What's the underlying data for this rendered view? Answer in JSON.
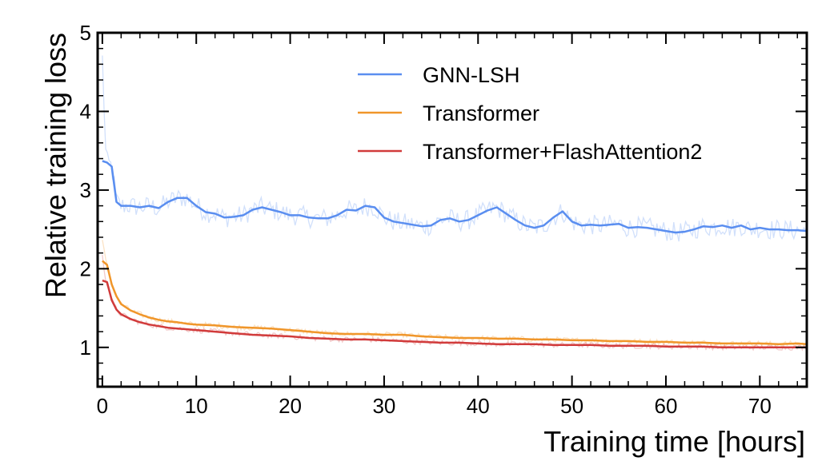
{
  "chart_data": {
    "type": "line",
    "xlabel": "Training time [hours]",
    "ylabel": "Relative training loss",
    "xlim": [
      -0.5,
      75
    ],
    "ylim": [
      0.5,
      5
    ],
    "xticks": [
      0,
      10,
      20,
      30,
      40,
      50,
      60,
      70
    ],
    "yticks": [
      1,
      2,
      3,
      4,
      5
    ],
    "legend_position": "top-right",
    "series": [
      {
        "name": "GNN-LSH",
        "color": "#5a8ef0",
        "x": [
          0,
          0.5,
          1,
          1.5,
          2,
          3,
          4,
          5,
          6,
          7,
          8,
          9,
          10,
          11,
          12,
          13,
          14,
          15,
          16,
          17,
          18,
          19,
          20,
          21,
          22,
          23,
          24,
          25,
          26,
          27,
          28,
          29,
          30,
          31,
          32,
          33,
          34,
          35,
          36,
          37,
          38,
          39,
          40,
          41,
          42,
          43,
          44,
          45,
          46,
          47,
          48,
          49,
          50,
          51,
          52,
          53,
          54,
          55,
          56,
          57,
          58,
          59,
          60,
          61,
          62,
          63,
          64,
          65,
          66,
          67,
          68,
          69,
          70,
          71,
          72,
          73,
          74,
          75
        ],
        "values": [
          3.37,
          3.35,
          3.3,
          2.85,
          2.8,
          2.8,
          2.78,
          2.8,
          2.77,
          2.85,
          2.9,
          2.9,
          2.8,
          2.72,
          2.7,
          2.65,
          2.66,
          2.68,
          2.75,
          2.78,
          2.75,
          2.72,
          2.68,
          2.68,
          2.65,
          2.64,
          2.64,
          2.68,
          2.75,
          2.74,
          2.8,
          2.78,
          2.65,
          2.6,
          2.58,
          2.56,
          2.54,
          2.55,
          2.62,
          2.64,
          2.6,
          2.62,
          2.68,
          2.74,
          2.78,
          2.7,
          2.62,
          2.55,
          2.52,
          2.55,
          2.65,
          2.73,
          2.6,
          2.55,
          2.56,
          2.55,
          2.56,
          2.57,
          2.52,
          2.53,
          2.52,
          2.5,
          2.48,
          2.46,
          2.47,
          2.5,
          2.54,
          2.53,
          2.55,
          2.52,
          2.55,
          2.5,
          2.52,
          2.5,
          2.5,
          2.49,
          2.49,
          2.48
        ]
      },
      {
        "name": "Transformer",
        "color": "#f0962a",
        "x": [
          0,
          0.5,
          1,
          1.5,
          2,
          3,
          4,
          5,
          6,
          7,
          8,
          9,
          10,
          12,
          14,
          16,
          18,
          20,
          22,
          24,
          26,
          28,
          30,
          32,
          34,
          36,
          38,
          40,
          42,
          44,
          46,
          48,
          50,
          52,
          54,
          56,
          58,
          60,
          62,
          64,
          66,
          68,
          70,
          72,
          74,
          75
        ],
        "values": [
          2.1,
          2.05,
          1.8,
          1.65,
          1.55,
          1.47,
          1.42,
          1.38,
          1.35,
          1.33,
          1.32,
          1.3,
          1.29,
          1.28,
          1.26,
          1.25,
          1.24,
          1.22,
          1.2,
          1.18,
          1.17,
          1.17,
          1.16,
          1.16,
          1.14,
          1.13,
          1.12,
          1.12,
          1.11,
          1.11,
          1.1,
          1.1,
          1.09,
          1.09,
          1.08,
          1.08,
          1.07,
          1.07,
          1.06,
          1.06,
          1.05,
          1.05,
          1.05,
          1.04,
          1.05,
          1.04
        ]
      },
      {
        "name": "Transformer+FlashAttention2",
        "color": "#d13b3b",
        "x": [
          0,
          0.5,
          1,
          1.5,
          2,
          3,
          4,
          5,
          6,
          7,
          8,
          9,
          10,
          12,
          14,
          16,
          18,
          20,
          22,
          24,
          26,
          28,
          30,
          32,
          34,
          36,
          38,
          40,
          42,
          44,
          46,
          48,
          50,
          52,
          54,
          56,
          58,
          60,
          62,
          64,
          66,
          68,
          70,
          72,
          74,
          75
        ],
        "values": [
          1.85,
          1.83,
          1.6,
          1.48,
          1.42,
          1.36,
          1.32,
          1.29,
          1.27,
          1.25,
          1.24,
          1.23,
          1.22,
          1.2,
          1.18,
          1.16,
          1.15,
          1.14,
          1.12,
          1.11,
          1.1,
          1.1,
          1.09,
          1.08,
          1.07,
          1.06,
          1.06,
          1.05,
          1.04,
          1.04,
          1.04,
          1.03,
          1.03,
          1.03,
          1.02,
          1.02,
          1.02,
          1.01,
          1.01,
          1.01,
          1.0,
          1.0,
          1.0,
          1.0,
          1.0,
          1.0
        ]
      }
    ]
  }
}
